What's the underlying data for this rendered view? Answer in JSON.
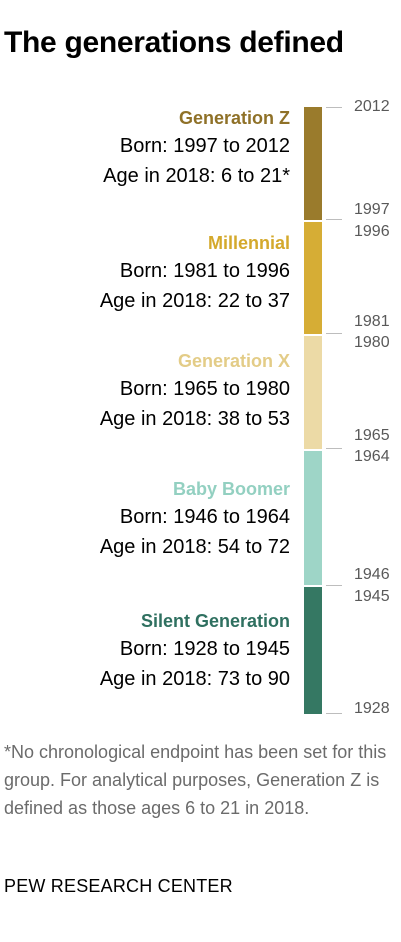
{
  "title": "The generations defined",
  "generations": [
    {
      "name": "Generation Z",
      "born": "Born: 1997 to 2012",
      "age": "Age in 2018: 6 to 21*",
      "color": "#9a7b2c",
      "start_year": "1997",
      "end_year": "2012"
    },
    {
      "name": "Millennial",
      "born": "Born: 1981 to 1996",
      "age": "Age in 2018: 22 to 37",
      "color": "#d6ad35",
      "start_year": "1981",
      "end_year": "1996"
    },
    {
      "name": "Generation X",
      "born": "Born: 1965 to 1980",
      "age": "Age in 2018: 38 to 53",
      "color": "#ecdaa6",
      "start_year": "1965",
      "end_year": "1980"
    },
    {
      "name": "Baby Boomer",
      "born": "Born: 1946 to 1964",
      "age": "Age in 2018: 54 to 72",
      "color": "#9ed5c7",
      "start_year": "1946",
      "end_year": "1964"
    },
    {
      "name": "Silent Generation",
      "born": "Born: 1928 to 1945",
      "age": "Age in 2018: 73 to 90",
      "color": "#357863",
      "start_year": "1928",
      "end_year": "1945"
    }
  ],
  "name_colors": [
    "#8f7128",
    "#d4a92c",
    "#e3cc87",
    "#93d0c1",
    "#2f7060"
  ],
  "footnote": "*No chronological endpoint has been set for this group. For analytical purposes, Generation Z is defined as those ages 6 to 21 in 2018.",
  "source": "PEW RESEARCH CENTER"
}
